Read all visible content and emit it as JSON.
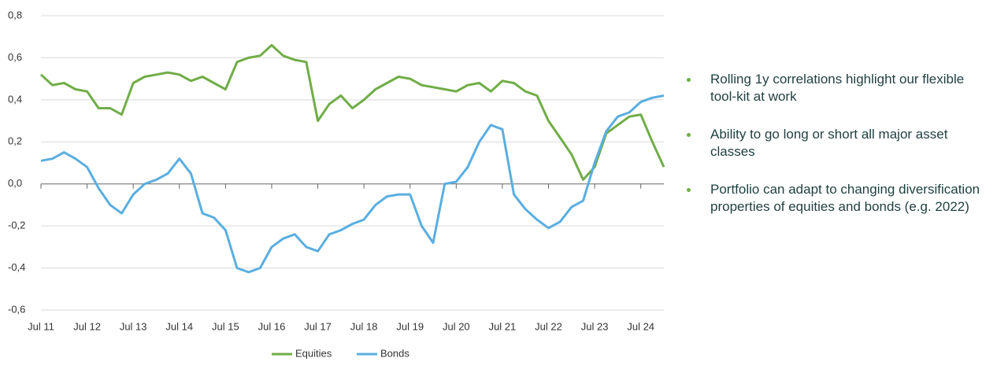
{
  "chart_data": {
    "type": "line",
    "categories": [
      "Jul 11",
      null,
      null,
      null,
      "Jul 12",
      null,
      null,
      null,
      "Jul 13",
      null,
      null,
      null,
      "Jul 14",
      null,
      null,
      null,
      "Jul 15",
      null,
      null,
      null,
      "Jul 16",
      null,
      null,
      null,
      "Jul 17",
      null,
      null,
      null,
      "Jul 18",
      null,
      null,
      null,
      "Jul 19",
      null,
      null,
      null,
      "Jul 20",
      null,
      null,
      null,
      "Jul 21",
      null,
      null,
      null,
      "Jul 22",
      null,
      null,
      null,
      "Jul 23",
      null,
      null,
      null,
      "Jul 24",
      null,
      null
    ],
    "series": [
      {
        "name": "Equities",
        "color": "#70ad47",
        "values": [
          0.52,
          0.47,
          0.48,
          0.45,
          0.44,
          0.36,
          0.36,
          0.33,
          0.48,
          0.51,
          0.52,
          0.53,
          0.52,
          0.49,
          0.51,
          0.48,
          0.45,
          0.58,
          0.6,
          0.61,
          0.66,
          0.61,
          0.59,
          0.58,
          0.3,
          0.38,
          0.42,
          0.36,
          0.4,
          0.45,
          0.48,
          0.51,
          0.5,
          0.47,
          0.46,
          0.45,
          0.44,
          0.47,
          0.48,
          0.44,
          0.49,
          0.48,
          0.44,
          0.42,
          0.3,
          0.22,
          0.14,
          0.02,
          0.08,
          0.24,
          0.28,
          0.32,
          0.33,
          0.2,
          0.08
        ]
      },
      {
        "name": "Bonds",
        "color": "#5aaee0",
        "values": [
          0.11,
          0.12,
          0.15,
          0.12,
          0.08,
          -0.02,
          -0.1,
          -0.14,
          -0.05,
          0.0,
          0.02,
          0.05,
          0.12,
          0.05,
          -0.14,
          -0.16,
          -0.22,
          -0.4,
          -0.42,
          -0.4,
          -0.3,
          -0.26,
          -0.24,
          -0.3,
          -0.32,
          -0.24,
          -0.22,
          -0.19,
          -0.17,
          -0.1,
          -0.06,
          -0.05,
          -0.05,
          -0.2,
          -0.28,
          0.0,
          0.01,
          0.08,
          0.2,
          0.28,
          0.26,
          -0.05,
          -0.12,
          -0.17,
          -0.21,
          -0.18,
          -0.11,
          -0.08,
          0.1,
          0.25,
          0.32,
          0.34,
          0.39,
          0.41,
          0.42
        ]
      }
    ],
    "ylim": [
      -0.6,
      0.8
    ],
    "yticks": [
      {
        "value": -0.6,
        "label": "-0,6"
      },
      {
        "value": -0.4,
        "label": "-0,4"
      },
      {
        "value": -0.2,
        "label": "-0,2"
      },
      {
        "value": 0,
        "label": "0,0"
      },
      {
        "value": 0.2,
        "label": "0,2"
      },
      {
        "value": 0.4,
        "label": "0,4"
      },
      {
        "value": 0.6,
        "label": "0,6"
      },
      {
        "value": 0.8,
        "label": "0,8"
      }
    ],
    "grid": true,
    "legend": "bottom"
  },
  "bullets": [
    "Rolling 1y correlations highlight our flexible tool-kit at work",
    "Ability to go long or short all major asset classes",
    "Portfolio can adapt to changing diversification properties of equities and bonds (e.g. 2022)"
  ]
}
